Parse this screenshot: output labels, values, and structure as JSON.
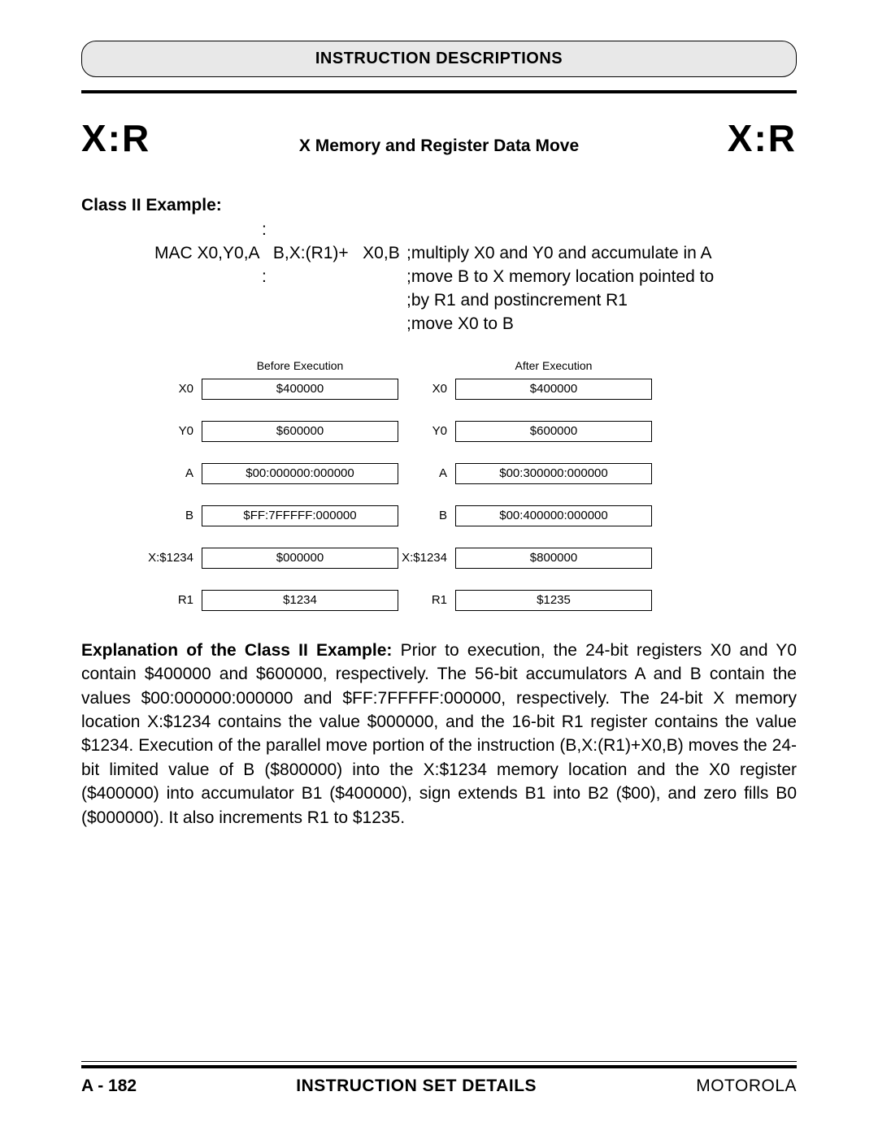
{
  "header": {
    "title": "INSTRUCTION DESCRIPTIONS"
  },
  "title_row": {
    "mnemonic_left": "X:R",
    "center": "X Memory and Register Data Move",
    "mnemonic_right": "X:R"
  },
  "example": {
    "section_label": "Class II Example:",
    "rows": [
      {
        "left": "MAC X0,Y0,A   B,X:(R1)+   X0,B",
        "right": ";multiply X0 and Y0 and accumulate in A"
      },
      {
        "left": "",
        "right": ";move B to X memory location pointed to"
      },
      {
        "left": "",
        "right": ";by R1 and postincrement R1"
      },
      {
        "left": "",
        "right": ";move X0 to B"
      }
    ]
  },
  "exec": {
    "before_label": "Before Execution",
    "after_label": "After Execution",
    "rows": [
      {
        "label": "X0",
        "before": "$400000",
        "after": "$400000"
      },
      {
        "label": "Y0",
        "before": "$600000",
        "after": "$600000"
      },
      {
        "label": "A",
        "before": "$00:000000:000000",
        "after": "$00:300000:000000"
      },
      {
        "label": "B",
        "before": "$FF:7FFFFF:000000",
        "after": "$00:400000:000000"
      },
      {
        "label": "X:$1234",
        "before": "$000000",
        "after": "$800000"
      },
      {
        "label": "R1",
        "before": "$1234",
        "after": "$1235"
      }
    ]
  },
  "explanation": {
    "lead": "Explanation of the Class II Example:",
    "body": " Prior to execution, the 24-bit registers X0 and Y0 contain $400000 and $600000, respectively. The 56-bit accumulators A and B contain the values $00:000000:000000 and $FF:7FFFFF:000000, respectively. The 24-bit X memory location X:$1234 contains the value $000000, and the 16-bit R1 register contains the value $1234. Execution of the parallel move portion of the instruction (B,X:(R1)+X0,B) moves the 24-bit limited value of B ($800000) into the X:$1234 memory location and the X0 register ($400000) into accumulator B1 ($400000), sign extends B1 into B2 ($00), and zero fills B0 ($000000). It also increments R1 to $1235."
  },
  "footer": {
    "left": "A - 182",
    "center": "INSTRUCTION SET DETAILS",
    "right": "MOTOROLA"
  },
  "colors": {
    "pill_bg": "#e8e8e8",
    "page_bg": "#ffffff",
    "text": "#000000",
    "rule": "#000000"
  }
}
